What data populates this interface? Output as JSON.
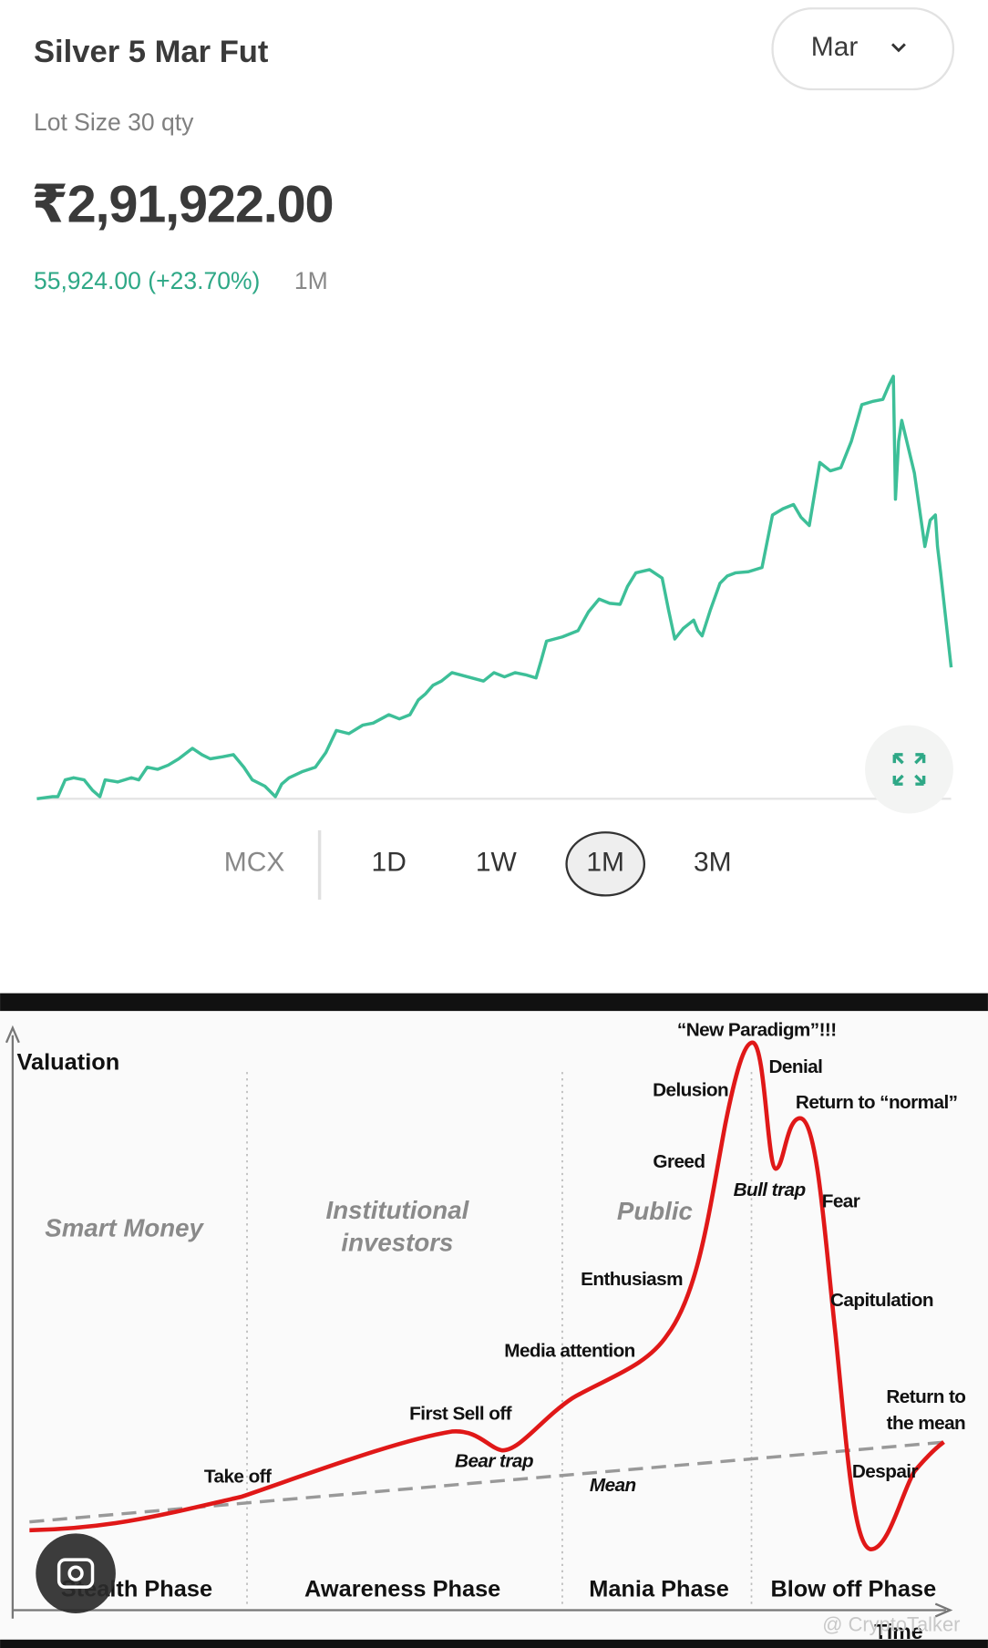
{
  "header": {
    "title": "Silver 5 Mar Fut",
    "expiry": "Mar",
    "lot_size": "Lot Size 30 qty"
  },
  "price": "₹2,91,922.00",
  "change": {
    "value": "55,924.00 (+23.70%)",
    "period": "1M"
  },
  "exchange": "MCX",
  "ranges": [
    "1D",
    "1W",
    "1M",
    "3M"
  ],
  "selected_range_index": 2,
  "diagram": {
    "y_label": "Valuation",
    "x_label": "Time",
    "zones": [
      [
        "Smart Money"
      ],
      [
        "Institutional",
        "investors"
      ],
      [
        "Public"
      ]
    ],
    "phases": [
      "Stealth Phase",
      "Awareness Phase",
      "Mania Phase",
      "Blow off Phase"
    ],
    "annotations": [
      "Take off",
      "First Sell off",
      "Bear trap",
      "Mean",
      "Media attention",
      "Enthusiasm",
      "Greed",
      "Delusion",
      "“New Paradigm”!!!",
      "Denial",
      "Return to “normal”",
      "Bull trap",
      "Fear",
      "Capitulation",
      [
        "Return to",
        "the mean"
      ],
      "Despair"
    ],
    "watermark": "@ CryptoTalker"
  }
}
